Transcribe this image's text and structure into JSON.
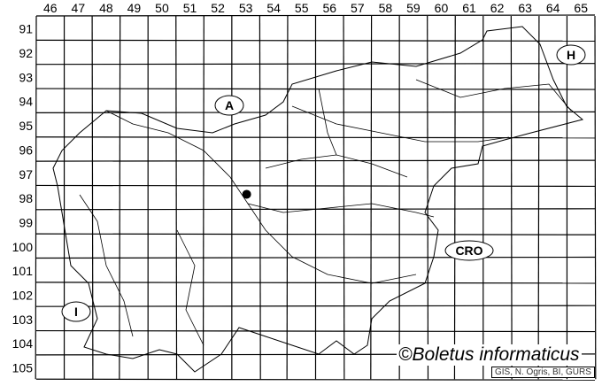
{
  "map": {
    "columns": [
      "46",
      "47",
      "48",
      "49",
      "50",
      "51",
      "52",
      "53",
      "54",
      "55",
      "56",
      "57",
      "58",
      "59",
      "60",
      "61",
      "62",
      "63",
      "64",
      "65"
    ],
    "rows": [
      "91",
      "92",
      "93",
      "94",
      "95",
      "96",
      "97",
      "98",
      "99",
      "100",
      "101",
      "102",
      "103",
      "104",
      "105"
    ],
    "country_labels": [
      {
        "id": "austria",
        "text": "A"
      },
      {
        "id": "hungary",
        "text": "H"
      },
      {
        "id": "croatia",
        "text": "CRO"
      },
      {
        "id": "italy",
        "text": "I"
      }
    ],
    "occurrence_points": [
      {
        "column": "53",
        "row": "98"
      }
    ],
    "line_color": "#000000"
  },
  "footer": {
    "copyright": "©Boletus informaticus",
    "credit": "GIS, N. Ogris, BI, GURS"
  }
}
